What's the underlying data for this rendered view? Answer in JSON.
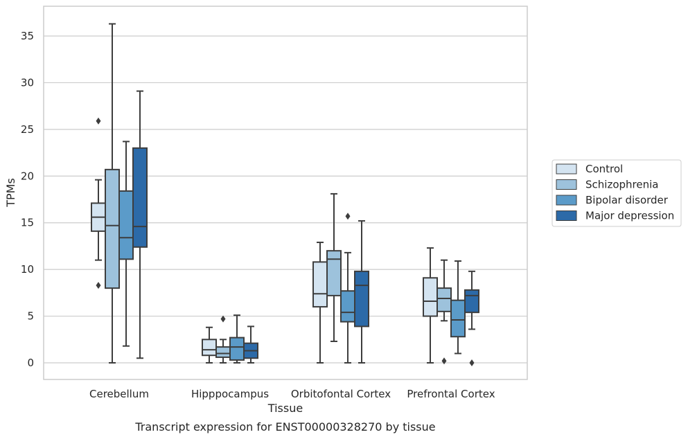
{
  "chart_data": {
    "type": "box",
    "title": "",
    "caption": "Transcript expression for ENST00000328270 by tissue",
    "xlabel": "Tissue",
    "ylabel": "TPMs",
    "ylim": [
      -1.7,
      38
    ],
    "yticks": [
      0,
      5,
      10,
      15,
      20,
      25,
      30,
      35
    ],
    "grid": "horizontal",
    "legend_position": "right",
    "categories": [
      "Cerebellum",
      "Hipppocampus",
      "Orbitofontal Cortex",
      "Prefrontal Cortex"
    ],
    "series": [
      {
        "name": "Control",
        "color": "#d4e4f1",
        "boxes": [
          {
            "whislo": 11.0,
            "q1": 14.1,
            "med": 15.6,
            "q3": 17.1,
            "whishi": 19.6,
            "fliers": [
              25.9,
              8.3
            ]
          },
          {
            "whislo": 0.0,
            "q1": 0.8,
            "med": 1.4,
            "q3": 2.5,
            "whishi": 3.8,
            "fliers": []
          },
          {
            "whislo": 0.0,
            "q1": 6.0,
            "med": 7.4,
            "q3": 10.8,
            "whishi": 12.9,
            "fliers": []
          },
          {
            "whislo": 0.0,
            "q1": 5.0,
            "med": 6.6,
            "q3": 9.1,
            "whishi": 12.3,
            "fliers": []
          }
        ]
      },
      {
        "name": "Schizophrenia",
        "color": "#9dc2dc",
        "boxes": [
          {
            "whislo": 0.0,
            "q1": 8.0,
            "med": 14.7,
            "q3": 20.7,
            "whishi": 36.3,
            "fliers": []
          },
          {
            "whislo": 0.0,
            "q1": 0.6,
            "med": 1.0,
            "q3": 1.7,
            "whishi": 2.5,
            "fliers": [
              4.7
            ]
          },
          {
            "whislo": 2.3,
            "q1": 7.2,
            "med": 11.1,
            "q3": 12.0,
            "whishi": 18.1,
            "fliers": []
          },
          {
            "whislo": 4.5,
            "q1": 5.5,
            "med": 6.9,
            "q3": 8.0,
            "whishi": 11.0,
            "fliers": [
              0.2
            ]
          }
        ]
      },
      {
        "name": "Bipolar disorder",
        "color": "#5b9bc9",
        "boxes": [
          {
            "whislo": 1.8,
            "q1": 11.1,
            "med": 13.4,
            "q3": 18.4,
            "whishi": 23.7,
            "fliers": []
          },
          {
            "whislo": 0.0,
            "q1": 0.3,
            "med": 1.7,
            "q3": 2.7,
            "whishi": 5.1,
            "fliers": []
          },
          {
            "whislo": 0.0,
            "q1": 4.4,
            "med": 5.4,
            "q3": 7.7,
            "whishi": 11.8,
            "fliers": [
              15.7
            ]
          },
          {
            "whislo": 1.0,
            "q1": 2.8,
            "med": 4.6,
            "q3": 6.7,
            "whishi": 10.9,
            "fliers": []
          }
        ]
      },
      {
        "name": "Major depression",
        "color": "#2c6aa8",
        "boxes": [
          {
            "whislo": 0.5,
            "q1": 12.4,
            "med": 14.6,
            "q3": 23.0,
            "whishi": 29.1,
            "fliers": []
          },
          {
            "whislo": 0.0,
            "q1": 0.5,
            "med": 1.3,
            "q3": 2.1,
            "whishi": 3.9,
            "fliers": []
          },
          {
            "whislo": 0.0,
            "q1": 3.9,
            "med": 8.3,
            "q3": 9.8,
            "whishi": 15.2,
            "fliers": []
          },
          {
            "whislo": 3.6,
            "q1": 5.4,
            "med": 7.2,
            "q3": 7.8,
            "whishi": 9.8,
            "fliers": [
              0.0
            ]
          }
        ]
      }
    ]
  }
}
